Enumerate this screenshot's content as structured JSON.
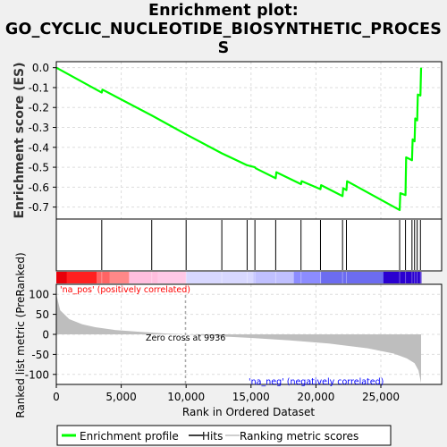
{
  "title_lines": [
    "Enrichment plot:",
    "GO_CYCLIC_NUCLEOTIDE_BIOSYNTHETIC_PROCES",
    "S"
  ],
  "legend": {
    "items": [
      {
        "label": "Enrichment profile",
        "color": "#00ff00"
      },
      {
        "label": "Hits",
        "color": "#000000"
      },
      {
        "label": "Ranking metric scores",
        "color": "#bebebe"
      }
    ]
  },
  "chart_data": {
    "type": "line",
    "n_genes": 28100,
    "enrichment": {
      "ylabel": "Enrichment score (ES)",
      "ylim": [
        -0.76,
        0.03
      ],
      "yticks": [
        0.0,
        -0.1,
        -0.2,
        -0.3,
        -0.4,
        -0.5,
        -0.6,
        -0.7
      ],
      "ytick_labels": [
        "0.0",
        "-0.1",
        "-0.2",
        "-0.3",
        "-0.4",
        "-0.5",
        "-0.6",
        "-0.7"
      ],
      "color": "#00ff00",
      "points": [
        [
          0,
          0.0
        ],
        [
          3500,
          -0.125
        ],
        [
          3550,
          -0.11
        ],
        [
          7350,
          -0.24
        ],
        [
          10000,
          -0.335
        ],
        [
          12750,
          -0.43
        ],
        [
          14700,
          -0.49
        ],
        [
          15300,
          -0.5
        ],
        [
          15350,
          -0.505
        ],
        [
          16900,
          -0.555
        ],
        [
          16950,
          -0.525
        ],
        [
          18850,
          -0.585
        ],
        [
          18900,
          -0.57
        ],
        [
          20350,
          -0.61
        ],
        [
          20400,
          -0.59
        ],
        [
          22050,
          -0.645
        ],
        [
          22100,
          -0.605
        ],
        [
          22350,
          -0.615
        ],
        [
          22400,
          -0.57
        ],
        [
          26450,
          -0.715
        ],
        [
          26500,
          -0.63
        ],
        [
          26900,
          -0.64
        ],
        [
          26950,
          -0.45
        ],
        [
          27400,
          -0.465
        ],
        [
          27450,
          -0.36
        ],
        [
          27600,
          -0.37
        ],
        [
          27650,
          -0.255
        ],
        [
          27800,
          -0.265
        ],
        [
          27850,
          -0.135
        ],
        [
          28050,
          -0.14
        ],
        [
          28100,
          0.0
        ]
      ]
    },
    "hits": [
      3500,
      7350,
      10000,
      12750,
      14700,
      15300,
      16900,
      18850,
      20350,
      22050,
      22350,
      26450,
      26900,
      27400,
      27600,
      27800,
      28050
    ],
    "heatmap_colors": [
      "#ff0000",
      "#ff5a5a",
      "#ff9696",
      "#ffc8e6",
      "#d2d2ff",
      "#aaaaff",
      "#6464ff",
      "#0000dd"
    ],
    "ranked_metric": {
      "ylabel": "Ranked list metric (PreRanked)",
      "xlabel": "Rank in Ordered Dataset",
      "ylim": [
        -125,
        125
      ],
      "yticks": [
        100,
        50,
        0,
        -50,
        -100
      ],
      "ytick_labels": [
        "100",
        "50",
        "0",
        "-50",
        "-100"
      ],
      "xticks": [
        0,
        5000,
        10000,
        15000,
        20000,
        25000
      ],
      "xtick_labels": [
        "0",
        "5,000",
        "10,000",
        "15,000",
        "20,000",
        "25,000"
      ],
      "zero_cross": 9936,
      "zero_cross_label": "Zero cross at 9936",
      "pos_label": "'na_pos' (positively correlated)",
      "neg_label": "'na_neg' (negatively correlated)",
      "pos_color": "#ff0000",
      "neg_color": "#0000ff",
      "fill_color": "#bebebe",
      "profile": [
        [
          0,
          100
        ],
        [
          300,
          60
        ],
        [
          1000,
          38
        ],
        [
          2000,
          25
        ],
        [
          3000,
          18
        ],
        [
          4500,
          11
        ],
        [
          6500,
          6
        ],
        [
          8500,
          2
        ],
        [
          9936,
          0
        ],
        [
          12000,
          -4
        ],
        [
          15000,
          -9
        ],
        [
          18000,
          -15
        ],
        [
          21000,
          -23
        ],
        [
          24000,
          -35
        ],
        [
          26000,
          -48
        ],
        [
          27000,
          -60
        ],
        [
          27600,
          -72
        ],
        [
          27900,
          -90
        ],
        [
          28100,
          -122
        ]
      ]
    }
  }
}
